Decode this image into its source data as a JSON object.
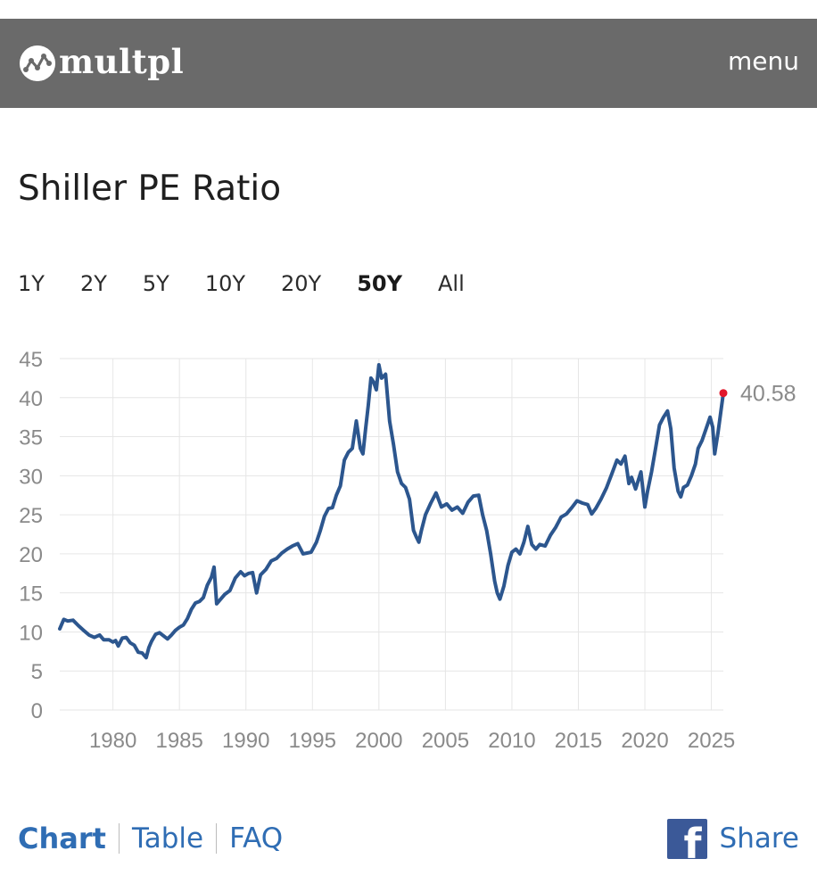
{
  "header": {
    "logo_text": "multpl",
    "menu_label": "menu"
  },
  "page": {
    "title": "Shiller PE Ratio"
  },
  "ranges": [
    {
      "label": "1Y",
      "active": false
    },
    {
      "label": "2Y",
      "active": false
    },
    {
      "label": "5Y",
      "active": false
    },
    {
      "label": "10Y",
      "active": false
    },
    {
      "label": "20Y",
      "active": false
    },
    {
      "label": "50Y",
      "active": true
    },
    {
      "label": "All",
      "active": false
    }
  ],
  "colors": {
    "line": "#2c568e",
    "last_point": "#e2172b",
    "grid": "#e6e6e6",
    "tick": "#8a8a8a",
    "link": "#2f6db4",
    "header_bg": "#6a6a6a",
    "facebook": "#3b5998"
  },
  "chart_data": {
    "type": "line",
    "title": "Shiller PE Ratio",
    "xlabel": "",
    "ylabel": "",
    "xlim": [
      1976.0,
      2025.9
    ],
    "ylim": [
      0,
      45
    ],
    "grid": true,
    "yticks": [
      0,
      5,
      10,
      15,
      20,
      25,
      30,
      35,
      40,
      45
    ],
    "xticks": [
      1980,
      1985,
      1990,
      1995,
      2000,
      2005,
      2010,
      2015,
      2020,
      2025
    ],
    "last_value_label": "40.58",
    "series": [
      {
        "name": "Shiller PE Ratio",
        "x": [
          1976.0,
          1976.3,
          1976.6,
          1977.0,
          1977.4,
          1977.8,
          1978.2,
          1978.6,
          1979.0,
          1979.3,
          1979.7,
          1980.0,
          1980.2,
          1980.4,
          1980.7,
          1981.0,
          1981.3,
          1981.6,
          1981.9,
          1982.2,
          1982.5,
          1982.7,
          1982.9,
          1983.2,
          1983.5,
          1983.8,
          1984.1,
          1984.4,
          1984.7,
          1985.0,
          1985.3,
          1985.6,
          1985.9,
          1986.2,
          1986.5,
          1986.8,
          1987.1,
          1987.4,
          1987.6,
          1987.8,
          1988.1,
          1988.4,
          1988.8,
          1989.2,
          1989.6,
          1989.9,
          1990.2,
          1990.5,
          1990.8,
          1991.1,
          1991.5,
          1991.9,
          1992.3,
          1992.7,
          1993.1,
          1993.5,
          1993.9,
          1994.3,
          1994.6,
          1994.9,
          1995.3,
          1995.6,
          1995.9,
          1996.2,
          1996.5,
          1996.8,
          1997.1,
          1997.4,
          1997.7,
          1998.0,
          1998.3,
          1998.6,
          1998.8,
          1999.0,
          1999.2,
          1999.4,
          1999.6,
          1999.8,
          2000.0,
          2000.2,
          2000.5,
          2000.8,
          2001.1,
          2001.4,
          2001.7,
          2002.0,
          2002.3,
          2002.6,
          2002.8,
          2003.0,
          2003.2,
          2003.5,
          2003.9,
          2004.3,
          2004.7,
          2005.1,
          2005.5,
          2005.9,
          2006.3,
          2006.7,
          2007.1,
          2007.5,
          2007.8,
          2008.1,
          2008.4,
          2008.7,
          2008.9,
          2009.1,
          2009.4,
          2009.7,
          2010.0,
          2010.3,
          2010.6,
          2010.9,
          2011.2,
          2011.5,
          2011.8,
          2012.1,
          2012.5,
          2012.9,
          2013.3,
          2013.7,
          2014.1,
          2014.5,
          2014.9,
          2015.3,
          2015.7,
          2016.0,
          2016.3,
          2016.7,
          2017.1,
          2017.5,
          2017.9,
          2018.2,
          2018.5,
          2018.8,
          2019.0,
          2019.3,
          2019.7,
          2020.0,
          2020.2,
          2020.5,
          2020.8,
          2021.1,
          2021.4,
          2021.7,
          2021.95,
          2022.2,
          2022.5,
          2022.7,
          2022.9,
          2023.2,
          2023.5,
          2023.8,
          2024.0,
          2024.3,
          2024.6,
          2024.9,
          2025.1,
          2025.25,
          2025.5,
          2025.9
        ],
        "values": [
          10.4,
          11.6,
          11.4,
          11.5,
          10.8,
          10.2,
          9.6,
          9.3,
          9.6,
          9.0,
          9.0,
          8.7,
          8.9,
          8.2,
          9.2,
          9.3,
          8.6,
          8.3,
          7.4,
          7.3,
          6.7,
          8.0,
          8.8,
          9.7,
          9.9,
          9.5,
          9.1,
          9.6,
          10.2,
          10.6,
          10.9,
          11.7,
          12.9,
          13.7,
          13.9,
          14.4,
          16.0,
          17.0,
          18.3,
          13.6,
          14.2,
          14.8,
          15.3,
          16.9,
          17.7,
          17.2,
          17.5,
          17.6,
          15.0,
          17.3,
          18.0,
          19.1,
          19.4,
          20.1,
          20.6,
          21.0,
          21.3,
          20.0,
          20.1,
          20.2,
          21.5,
          23.0,
          24.8,
          25.8,
          25.9,
          27.5,
          28.7,
          32.0,
          33.0,
          33.5,
          37.0,
          33.5,
          32.8,
          36.0,
          39.0,
          42.5,
          42.0,
          41.0,
          44.2,
          42.5,
          43.0,
          37.0,
          34.0,
          30.5,
          29.0,
          28.5,
          27.0,
          23.0,
          22.2,
          21.5,
          23.0,
          25.0,
          26.5,
          27.8,
          26.0,
          26.4,
          25.6,
          26.0,
          25.2,
          26.6,
          27.4,
          27.5,
          25.0,
          23.0,
          20.0,
          16.5,
          15.0,
          14.2,
          15.9,
          18.5,
          20.2,
          20.6,
          20.0,
          21.5,
          23.5,
          21.2,
          20.6,
          21.2,
          21.0,
          22.4,
          23.4,
          24.7,
          25.1,
          25.9,
          26.8,
          26.5,
          26.3,
          25.1,
          25.8,
          27.0,
          28.4,
          30.2,
          32.0,
          31.5,
          32.5,
          29.0,
          29.8,
          28.3,
          30.5,
          26.0,
          28.0,
          30.5,
          33.5,
          36.5,
          37.5,
          38.3,
          36.0,
          31.0,
          28.0,
          27.3,
          28.5,
          28.8,
          30.0,
          31.5,
          33.5,
          34.5,
          36.0,
          37.5,
          36.2,
          32.8,
          35.5,
          40.58
        ]
      }
    ]
  },
  "footer": {
    "chart_label": "Chart",
    "table_label": "Table",
    "faq_label": "FAQ",
    "share_label": "Share"
  }
}
